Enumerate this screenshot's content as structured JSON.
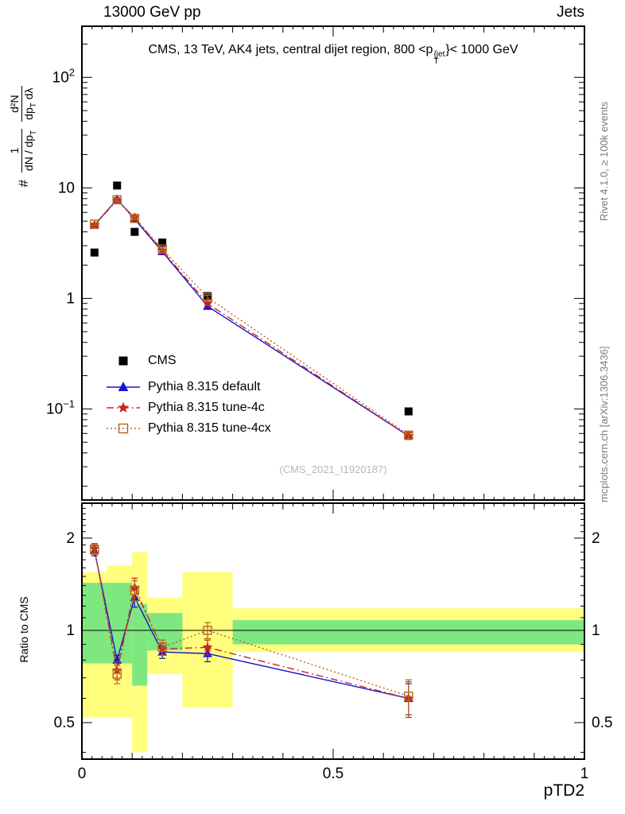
{
  "header": {
    "left": "13000 GeV pp",
    "right": "Jets"
  },
  "side_labels": {
    "rivet": "Rivet 4.1.0, ≥ 100k events",
    "mcplots": "mcplots.cern.ch [arXiv:1306.3436]"
  },
  "watermark": "(CMS_2021_I1920187)",
  "chart_data": {
    "type": "line",
    "x_axis": {
      "label": "pTD2",
      "min": 0,
      "max": 1,
      "major_ticks": [
        0,
        0.5,
        1
      ],
      "tick_labels": [
        "0",
        "0.5",
        "1"
      ]
    },
    "main_panel": {
      "title": {
        "prefix": "CMS, 13 TeV, AK4 jets, central dijet region, 800 <p",
        "sup": "{jet",
        "sub": "T",
        "suffix": "}< 1000 GeV"
      },
      "ylabel": {
        "prefix": "#",
        "frac1_num": "1",
        "frac1_den": "dN / dp",
        "frac1_den_sub": "T",
        "frac2_num": "d²N",
        "frac2_den_a": "dp",
        "frac2_den_a_sub": "T",
        "frac2_den_b": " dλ"
      },
      "yscale": "log",
      "ymin": 0.015,
      "ymax": 290,
      "tick_labels": [
        {
          "value": 100,
          "base": "10",
          "exp": "2"
        },
        {
          "value": 10,
          "base": "10"
        },
        {
          "value": 1,
          "base": "1"
        },
        {
          "value": 0.1,
          "base": "10",
          "exp": "−1"
        }
      ]
    },
    "ratio_panel": {
      "ylabel": "Ratio to CMS",
      "yscale": "log",
      "ymin": 0.38,
      "ymax": 2.6,
      "tick_values": [
        2,
        1,
        0.5
      ],
      "tick_labels": [
        "2",
        "1",
        "0.5"
      ],
      "bands": {
        "yellow": {
          "color": "#ffff7d",
          "bins": [
            [
              0,
              0.05,
              0.52,
              1.55
            ],
            [
              0.05,
              0.1,
              0.52,
              1.63
            ],
            [
              0.1,
              0.13,
              0.4,
              1.8
            ],
            [
              0.13,
              0.2,
              0.72,
              1.28
            ],
            [
              0.2,
              0.3,
              0.56,
              1.55
            ],
            [
              0.3,
              1,
              0.85,
              1.18
            ]
          ]
        },
        "green": {
          "color": "#7fe77f",
          "bins": [
            [
              0,
              0.05,
              0.78,
              1.43
            ],
            [
              0.05,
              0.1,
              0.78,
              1.43
            ],
            [
              0.1,
              0.13,
              0.66,
              1.22
            ],
            [
              0.13,
              0.2,
              0.86,
              1.14
            ],
            [
              0.3,
              1,
              0.9,
              1.08
            ]
          ]
        }
      }
    },
    "x": [
      0.025,
      0.07,
      0.105,
      0.16,
      0.25,
      0.65
    ],
    "series": [
      {
        "name": "CMS",
        "color": "#000000",
        "marker": "square-filled",
        "line": "none",
        "values": [
          2.6,
          10.5,
          4.0,
          3.2,
          1.05,
          0.095
        ],
        "yerr": [
          0.1,
          0.3,
          0.2,
          0.12,
          0.05,
          0.005
        ]
      },
      {
        "name": "Pythia 8.315 default",
        "color": "#1414cc",
        "marker": "triangle-filled",
        "line": "solid",
        "values": [
          4.6,
          7.9,
          5.2,
          2.65,
          0.85,
          0.057
        ],
        "yerr": [
          0.12,
          0.2,
          0.2,
          0.1,
          0.04,
          0.004
        ],
        "ratio": [
          1.82,
          0.8,
          1.28,
          0.85,
          0.84,
          0.6
        ],
        "ratio_err": [
          0.07,
          0.03,
          0.09,
          0.04,
          0.05,
          0.07
        ]
      },
      {
        "name": "Pythia 8.315 tune-4c",
        "color": "#cc2222",
        "marker": "star",
        "line": "dashdot",
        "values": [
          4.6,
          7.7,
          5.4,
          2.7,
          0.9,
          0.057
        ],
        "yerr": [
          0.12,
          0.2,
          0.2,
          0.1,
          0.04,
          0.004
        ],
        "ratio": [
          1.85,
          0.74,
          1.38,
          0.87,
          0.88,
          0.6
        ],
        "ratio_err": [
          0.07,
          0.05,
          0.1,
          0.04,
          0.05,
          0.08
        ]
      },
      {
        "name": "Pythia 8.315 tune-4cx",
        "color": "#b5651d",
        "marker": "square-open",
        "line": "dotted",
        "values": [
          4.7,
          7.8,
          5.3,
          2.8,
          1.02,
          0.058
        ],
        "yerr": [
          0.12,
          0.2,
          0.2,
          0.1,
          0.05,
          0.004
        ],
        "ratio": [
          1.84,
          0.72,
          1.35,
          0.88,
          1.0,
          0.61
        ],
        "ratio_err": [
          0.07,
          0.05,
          0.1,
          0.05,
          0.06,
          0.08
        ]
      }
    ]
  }
}
